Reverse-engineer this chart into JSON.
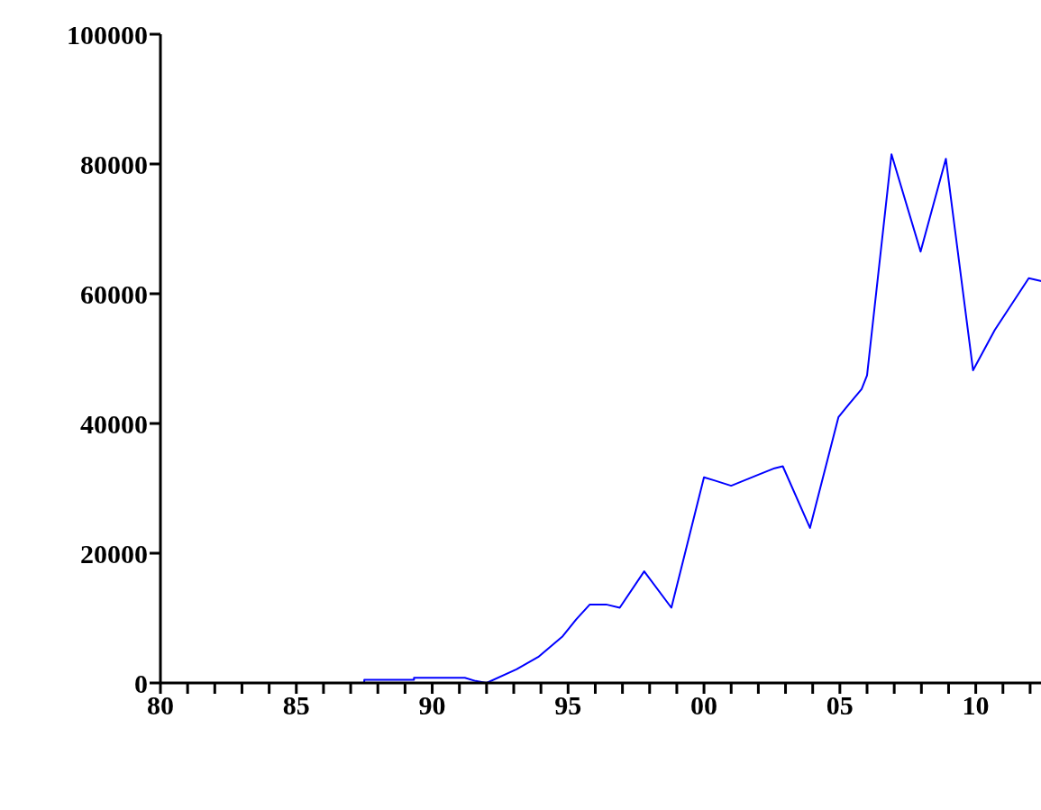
{
  "chart_data": {
    "type": "line",
    "color": "#0000ff",
    "line_style": "solid",
    "marker": "none",
    "grid": false,
    "legend": false,
    "x": [
      1980,
      1987.5,
      1987.5,
      1989.33,
      1989.33,
      1991.2,
      1991.6,
      1992.0,
      1993.1,
      1993.9,
      1994.8,
      1995.3,
      1995.8,
      1996.4,
      1996.9,
      1997.8,
      1998.8,
      2000.0,
      2000.4,
      2001.0,
      2002.0,
      2002.6,
      2002.9,
      2003.9,
      2004.95,
      2005.3,
      2005.8,
      2006.0,
      2006.9,
      2007.97,
      2008.9,
      2009.9,
      2010.7,
      2011.95,
      2012.45
    ],
    "values": [
      0,
      0,
      500,
      500,
      800,
      800,
      300,
      0,
      2100,
      4000,
      7200,
      9800,
      12100,
      12100,
      11600,
      17200,
      11600,
      31700,
      31200,
      30400,
      32100,
      33100,
      33400,
      23900,
      41000,
      42800,
      45300,
      47400,
      81500,
      66500,
      80800,
      48200,
      54400,
      62400,
      61900
    ],
    "xlim": [
      1980,
      2012.5
    ],
    "xticks": [
      {
        "value": 1980,
        "label": "80"
      },
      {
        "value": 1981,
        "label": null
      },
      {
        "value": 1982,
        "label": null
      },
      {
        "value": 1983,
        "label": null
      },
      {
        "value": 1984,
        "label": null
      },
      {
        "value": 1985,
        "label": "85"
      },
      {
        "value": 1986,
        "label": null
      },
      {
        "value": 1987,
        "label": null
      },
      {
        "value": 1988,
        "label": null
      },
      {
        "value": 1989,
        "label": null
      },
      {
        "value": 1990,
        "label": "90"
      },
      {
        "value": 1991,
        "label": null
      },
      {
        "value": 1992,
        "label": null
      },
      {
        "value": 1993,
        "label": null
      },
      {
        "value": 1994,
        "label": null
      },
      {
        "value": 1995,
        "label": "95"
      },
      {
        "value": 1996,
        "label": null
      },
      {
        "value": 1997,
        "label": null
      },
      {
        "value": 1998,
        "label": null
      },
      {
        "value": 1999,
        "label": null
      },
      {
        "value": 2000,
        "label": "00"
      },
      {
        "value": 2001,
        "label": null
      },
      {
        "value": 2002,
        "label": null
      },
      {
        "value": 2003,
        "label": null
      },
      {
        "value": 2004,
        "label": null
      },
      {
        "value": 2005,
        "label": "05"
      },
      {
        "value": 2006,
        "label": null
      },
      {
        "value": 2007,
        "label": null
      },
      {
        "value": 2008,
        "label": null
      },
      {
        "value": 2009,
        "label": null
      },
      {
        "value": 2010,
        "label": "10"
      },
      {
        "value": 2011,
        "label": null
      },
      {
        "value": 2012,
        "label": null
      }
    ],
    "ylim": [
      0,
      100000
    ],
    "yticks": [
      0,
      20000,
      40000,
      60000,
      80000,
      100000
    ]
  }
}
